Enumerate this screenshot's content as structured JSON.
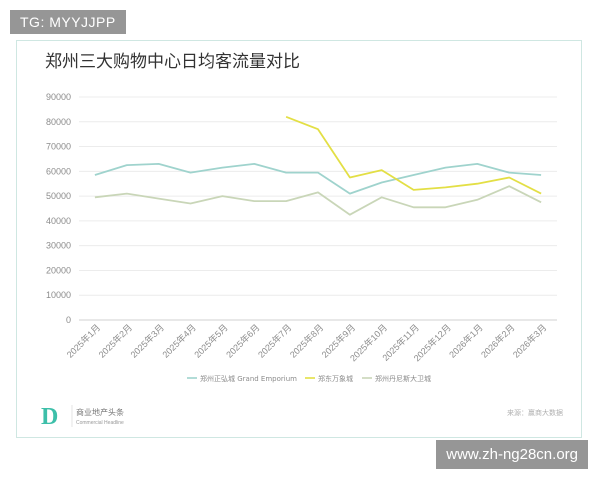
{
  "watermark_top": "TG: MYYJJPP",
  "watermark_bottom": "www.zh-ng28cn.org",
  "footer": {
    "brand_mark": "D",
    "brand_cn": "商业地产头条",
    "brand_en": "Commercial Headline",
    "source": "来源：赢商大数据"
  },
  "colors": {
    "border": "#cfe7e2",
    "series": [
      "#9fd3cd",
      "#e3df45",
      "#c9d6b8"
    ],
    "logo": "#3dbfa9"
  },
  "chart_data": {
    "type": "line",
    "title": "郑州三大购物中心日均客流量对比",
    "x": [
      "2025年1月",
      "2025年2月",
      "2025年3月",
      "2025年4月",
      "2025年5月",
      "2025年6月",
      "2025年7月",
      "2025年8月",
      "2025年9月",
      "2025年10月",
      "2025年11月",
      "2025年12月",
      "2026年1月",
      "2026年2月",
      "2026年3月"
    ],
    "y_ticks": [
      "0",
      "10000",
      "20000",
      "30000",
      "40000",
      "50000",
      "60000",
      "70000",
      "80000",
      "90000"
    ],
    "ylim": [
      0,
      90000
    ],
    "grid": true,
    "legend_position": "bottom",
    "series": [
      {
        "name": "郑州正弘城 Grand Emporium",
        "values": [
          58500,
          62500,
          63000,
          59500,
          61500,
          63000,
          59500,
          59500,
          51000,
          55500,
          58500,
          61500,
          63000,
          59500,
          58500
        ]
      },
      {
        "name": "郑东万象城",
        "values": [
          null,
          null,
          null,
          null,
          null,
          null,
          82000,
          77000,
          57500,
          60500,
          52500,
          53500,
          55000,
          57500,
          51000
        ]
      },
      {
        "name": "郑州丹尼斯大卫城",
        "values": [
          49500,
          51000,
          49000,
          47000,
          50000,
          48000,
          48000,
          51500,
          42500,
          49500,
          45500,
          45500,
          48500,
          54000,
          47500
        ]
      }
    ]
  }
}
